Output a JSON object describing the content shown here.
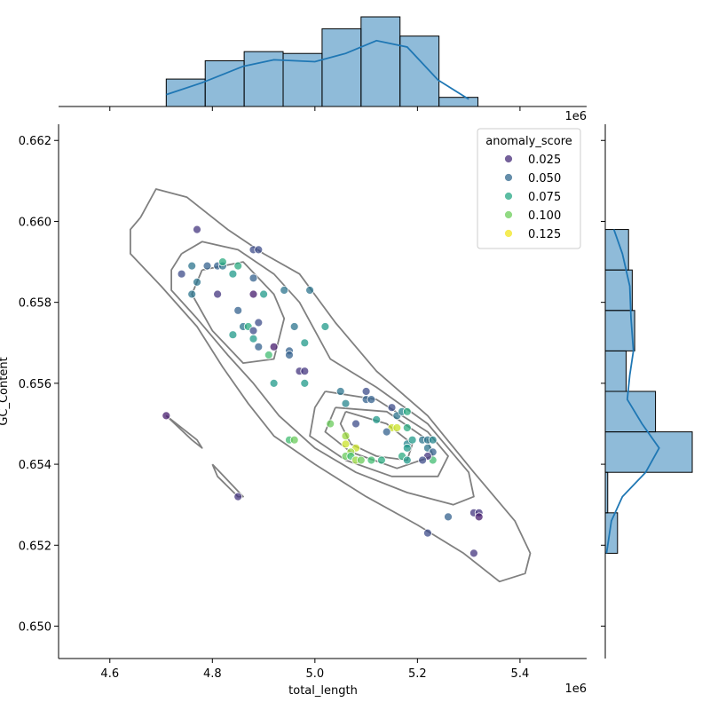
{
  "chart_data": {
    "type": "scatter",
    "subtype": "jointplot",
    "xlabel": "total_length",
    "ylabel": "GC_Content",
    "x_multiplier_label": "1e6",
    "xlim": [
      4.5,
      5.53
    ],
    "ylim": [
      0.6492,
      0.6624
    ],
    "x_ticks": [
      4.6,
      4.8,
      5.0,
      5.2,
      5.4
    ],
    "x_tick_labels": [
      "4.6",
      "4.8",
      "5.0",
      "5.2",
      "5.4"
    ],
    "y_ticks": [
      0.65,
      0.652,
      0.654,
      0.656,
      0.658,
      0.66,
      0.662
    ],
    "y_tick_labels": [
      "0.650",
      "0.652",
      "0.654",
      "0.656",
      "0.658",
      "0.660",
      "0.662"
    ],
    "legend": {
      "title": "anomaly_score",
      "placement": "top-right",
      "entries": [
        {
          "label": "0.025",
          "color": "#472c7a"
        },
        {
          "label": "0.050",
          "color": "#31688e"
        },
        {
          "label": "0.075",
          "color": "#26a784"
        },
        {
          "label": "0.100",
          "color": "#6ccd5a"
        },
        {
          "label": "0.125",
          "color": "#f1e51d"
        }
      ]
    },
    "colormap": {
      "name": "viridis",
      "range": [
        0.0,
        0.13
      ]
    },
    "scatter_points": [
      [
        4.77,
        0.6598,
        0.02
      ],
      [
        4.74,
        0.6587,
        0.03
      ],
      [
        4.76,
        0.6589,
        0.05
      ],
      [
        4.77,
        0.6585,
        0.05
      ],
      [
        4.76,
        0.6582,
        0.05
      ],
      [
        4.79,
        0.6589,
        0.04
      ],
      [
        4.81,
        0.6589,
        0.04
      ],
      [
        4.82,
        0.6589,
        0.05
      ],
      [
        4.82,
        0.659,
        0.08
      ],
      [
        4.85,
        0.6589,
        0.08
      ],
      [
        4.84,
        0.6587,
        0.07
      ],
      [
        4.81,
        0.6582,
        0.02
      ],
      [
        4.88,
        0.6593,
        0.03
      ],
      [
        4.89,
        0.6593,
        0.03
      ],
      [
        4.88,
        0.6586,
        0.04
      ],
      [
        4.88,
        0.6582,
        0.01
      ],
      [
        4.9,
        0.6582,
        0.07
      ],
      [
        4.94,
        0.6583,
        0.05
      ],
      [
        4.99,
        0.6583,
        0.05
      ],
      [
        4.85,
        0.6578,
        0.04
      ],
      [
        4.86,
        0.6574,
        0.05
      ],
      [
        4.89,
        0.6575,
        0.03
      ],
      [
        4.87,
        0.6574,
        0.08
      ],
      [
        4.88,
        0.6573,
        0.03
      ],
      [
        4.84,
        0.6572,
        0.07
      ],
      [
        4.88,
        0.6571,
        0.07
      ],
      [
        4.89,
        0.6569,
        0.04
      ],
      [
        4.92,
        0.6569,
        0.01
      ],
      [
        4.96,
        0.6574,
        0.05
      ],
      [
        4.98,
        0.657,
        0.07
      ],
      [
        4.91,
        0.6567,
        0.09
      ],
      [
        4.95,
        0.6568,
        0.04
      ],
      [
        4.95,
        0.6567,
        0.04
      ],
      [
        4.97,
        0.6563,
        0.02
      ],
      [
        4.98,
        0.6563,
        0.02
      ],
      [
        4.92,
        0.656,
        0.07
      ],
      [
        4.98,
        0.656,
        0.07
      ],
      [
        5.02,
        0.6574,
        0.07
      ],
      [
        5.05,
        0.6558,
        0.05
      ],
      [
        5.06,
        0.6555,
        0.06
      ],
      [
        5.1,
        0.6558,
        0.03
      ],
      [
        5.1,
        0.6556,
        0.04
      ],
      [
        5.11,
        0.6556,
        0.04
      ],
      [
        5.08,
        0.655,
        0.03
      ],
      [
        5.12,
        0.6551,
        0.07
      ],
      [
        5.15,
        0.6554,
        0.03
      ],
      [
        5.16,
        0.6552,
        0.05
      ],
      [
        5.17,
        0.6553,
        0.06
      ],
      [
        5.18,
        0.6553,
        0.08
      ],
      [
        4.71,
        0.6552,
        0.01
      ],
      [
        4.85,
        0.6532,
        0.02
      ],
      [
        5.03,
        0.655,
        0.1
      ],
      [
        5.06,
        0.6547,
        0.11
      ],
      [
        5.06,
        0.6545,
        0.12
      ],
      [
        5.08,
        0.6544,
        0.12
      ],
      [
        5.07,
        0.6543,
        0.11
      ],
      [
        5.06,
        0.6542,
        0.1
      ],
      [
        5.07,
        0.6542,
        0.09
      ],
      [
        5.08,
        0.6541,
        0.11
      ],
      [
        5.09,
        0.6541,
        0.1
      ],
      [
        5.11,
        0.6541,
        0.09
      ],
      [
        5.13,
        0.6541,
        0.08
      ],
      [
        4.95,
        0.6546,
        0.09
      ],
      [
        4.96,
        0.6546,
        0.1
      ],
      [
        5.15,
        0.6549,
        0.12
      ],
      [
        5.16,
        0.6549,
        0.12
      ],
      [
        5.14,
        0.6548,
        0.04
      ],
      [
        5.17,
        0.6542,
        0.08
      ],
      [
        5.18,
        0.6541,
        0.07
      ],
      [
        5.18,
        0.6545,
        0.06
      ],
      [
        5.19,
        0.6546,
        0.07
      ],
      [
        5.18,
        0.6544,
        0.07
      ],
      [
        5.18,
        0.6549,
        0.08
      ],
      [
        5.21,
        0.6546,
        0.05
      ],
      [
        5.22,
        0.6546,
        0.05
      ],
      [
        5.23,
        0.6546,
        0.06
      ],
      [
        5.22,
        0.6544,
        0.05
      ],
      [
        5.23,
        0.6543,
        0.04
      ],
      [
        5.23,
        0.6541,
        0.09
      ],
      [
        5.22,
        0.6542,
        0.02
      ],
      [
        5.21,
        0.6541,
        0.03
      ],
      [
        5.26,
        0.6527,
        0.04
      ],
      [
        5.22,
        0.6523,
        0.03
      ],
      [
        5.31,
        0.6528,
        0.02
      ],
      [
        5.32,
        0.6528,
        0.02
      ],
      [
        5.32,
        0.6527,
        0.01
      ],
      [
        5.31,
        0.6518,
        0.02
      ]
    ],
    "kde_contours": [
      [
        [
          4.66,
          0.6601
        ],
        [
          4.69,
          0.6608
        ],
        [
          4.75,
          0.6606
        ],
        [
          4.83,
          0.6598
        ],
        [
          4.9,
          0.6592
        ],
        [
          4.97,
          0.6587
        ],
        [
          5.04,
          0.6575
        ],
        [
          5.12,
          0.6563
        ],
        [
          5.22,
          0.6552
        ],
        [
          5.31,
          0.6538
        ],
        [
          5.39,
          0.6526
        ],
        [
          5.42,
          0.6518
        ],
        [
          5.41,
          0.6513
        ],
        [
          5.36,
          0.6511
        ],
        [
          5.29,
          0.6518
        ],
        [
          5.2,
          0.6525
        ],
        [
          5.1,
          0.6532
        ],
        [
          5.0,
          0.654
        ],
        [
          4.92,
          0.6547
        ],
        [
          4.87,
          0.6555
        ],
        [
          4.82,
          0.6564
        ],
        [
          4.77,
          0.6574
        ],
        [
          4.7,
          0.6584
        ],
        [
          4.64,
          0.6592
        ],
        [
          4.64,
          0.6598
        ],
        [
          4.66,
          0.6601
        ]
      ],
      [
        [
          4.74,
          0.6592
        ],
        [
          4.78,
          0.6595
        ],
        [
          4.85,
          0.6593
        ],
        [
          4.92,
          0.6587
        ],
        [
          4.97,
          0.658
        ],
        [
          5.03,
          0.6566
        ],
        [
          5.12,
          0.6559
        ],
        [
          5.22,
          0.655
        ],
        [
          5.3,
          0.6538
        ],
        [
          5.31,
          0.6532
        ],
        [
          5.27,
          0.653
        ],
        [
          5.18,
          0.6533
        ],
        [
          5.08,
          0.6538
        ],
        [
          5.0,
          0.6544
        ],
        [
          4.93,
          0.6552
        ],
        [
          4.88,
          0.656
        ],
        [
          4.83,
          0.6567
        ],
        [
          4.77,
          0.6576
        ],
        [
          4.72,
          0.6583
        ],
        [
          4.72,
          0.6588
        ],
        [
          4.74,
          0.6592
        ]
      ],
      [
        [
          4.78,
          0.6588
        ],
        [
          4.86,
          0.659
        ],
        [
          4.92,
          0.6582
        ],
        [
          4.94,
          0.6576
        ],
        [
          4.92,
          0.6566
        ],
        [
          4.86,
          0.6565
        ],
        [
          4.8,
          0.6573
        ],
        [
          4.76,
          0.6582
        ],
        [
          4.78,
          0.6588
        ]
      ],
      [
        [
          5.02,
          0.6558
        ],
        [
          5.12,
          0.6556
        ],
        [
          5.22,
          0.6548
        ],
        [
          5.26,
          0.6542
        ],
        [
          5.24,
          0.6537
        ],
        [
          5.15,
          0.6537
        ],
        [
          5.06,
          0.6541
        ],
        [
          4.99,
          0.6547
        ],
        [
          5.0,
          0.6554
        ],
        [
          5.02,
          0.6558
        ]
      ],
      [
        [
          5.04,
          0.6554
        ],
        [
          5.14,
          0.6553
        ],
        [
          5.22,
          0.6546
        ],
        [
          5.23,
          0.6542
        ],
        [
          5.16,
          0.6539
        ],
        [
          5.07,
          0.6543
        ],
        [
          5.02,
          0.6548
        ],
        [
          5.04,
          0.6554
        ]
      ],
      [
        [
          5.06,
          0.6553
        ],
        [
          5.14,
          0.655
        ],
        [
          5.19,
          0.6545
        ],
        [
          5.18,
          0.6541
        ],
        [
          5.12,
          0.6542
        ],
        [
          5.07,
          0.6545
        ],
        [
          5.05,
          0.655
        ],
        [
          5.06,
          0.6553
        ]
      ],
      [
        [
          4.71,
          0.6552
        ],
        [
          4.76,
          0.6546
        ],
        [
          4.78,
          0.6544
        ],
        [
          4.77,
          0.6546
        ],
        [
          4.72,
          0.6551
        ],
        [
          4.71,
          0.6552
        ]
      ],
      [
        [
          4.8,
          0.654
        ],
        [
          4.83,
          0.6536
        ],
        [
          4.86,
          0.6532
        ],
        [
          4.85,
          0.6532
        ],
        [
          4.81,
          0.6537
        ],
        [
          4.8,
          0.654
        ]
      ]
    ],
    "x_histogram": {
      "bin_edges": [
        4.71,
        4.786,
        4.862,
        4.938,
        5.014,
        5.09,
        5.166,
        5.242,
        5.318
      ],
      "counts": [
        3,
        5,
        6,
        5.8,
        8.5,
        9.8,
        7.7,
        1
      ],
      "kde_curve": [
        [
          4.71,
          1.3
        ],
        [
          4.78,
          2.6
        ],
        [
          4.86,
          4.4
        ],
        [
          4.92,
          5.1
        ],
        [
          5.0,
          4.9
        ],
        [
          5.06,
          5.8
        ],
        [
          5.12,
          7.2
        ],
        [
          5.18,
          6.5
        ],
        [
          5.24,
          2.9
        ],
        [
          5.3,
          0.8
        ]
      ]
    },
    "y_histogram": {
      "bin_edges": [
        0.6518,
        0.6528,
        0.6538,
        0.6548,
        0.6558,
        0.6568,
        0.6578,
        0.6588,
        0.6598
      ],
      "counts": [
        1,
        0.2,
        7.1,
        4.1,
        1.7,
        2.4,
        2.2,
        1.9
      ],
      "kde_curve": [
        [
          0.6518,
          0.1
        ],
        [
          0.6526,
          0.5
        ],
        [
          0.6532,
          1.4
        ],
        [
          0.6538,
          3.3
        ],
        [
          0.6544,
          4.4
        ],
        [
          0.655,
          3.0
        ],
        [
          0.6556,
          1.8
        ],
        [
          0.6562,
          2.0
        ],
        [
          0.6568,
          2.3
        ],
        [
          0.6576,
          2.1
        ],
        [
          0.6584,
          2.0
        ],
        [
          0.6592,
          1.4
        ],
        [
          0.6598,
          0.7
        ]
      ]
    }
  }
}
